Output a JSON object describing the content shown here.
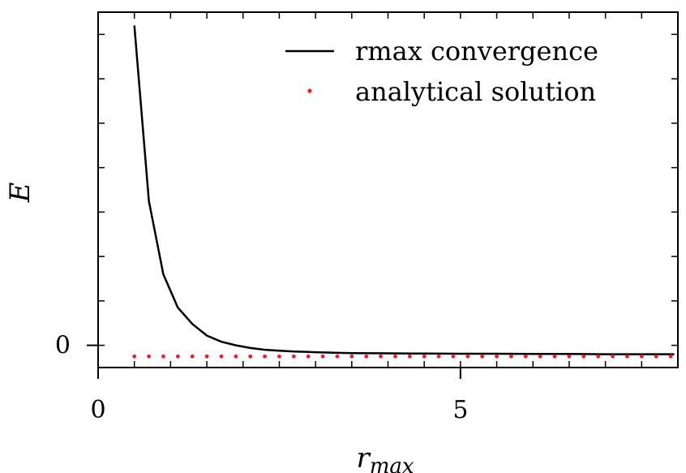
{
  "chart_data": {
    "type": "line",
    "title": "",
    "xlabel": "r",
    "xlabel_subscript": "max",
    "ylabel": "E",
    "xlim": [
      0,
      8
    ],
    "ylim": [
      -0.5,
      7.5
    ],
    "x_ticks": [
      0,
      5
    ],
    "x_tick_labels": [
      "0",
      "5"
    ],
    "y_ticks": [
      0
    ],
    "y_tick_labels": [
      "0"
    ],
    "grid": false,
    "legend_position": "top-right",
    "series": [
      {
        "name": "rmax convergence",
        "style": "line",
        "color": "#000000",
        "x": [
          0.5,
          0.7,
          0.9,
          1.1,
          1.3,
          1.5,
          1.7,
          1.9,
          2.1,
          2.3,
          2.5,
          2.7,
          2.9,
          3.1,
          3.3,
          3.5,
          4.0,
          4.5,
          5.0,
          5.5,
          6.0,
          6.5,
          7.0,
          7.5,
          7.95
        ],
        "y": [
          7.2,
          3.25,
          1.6,
          0.85,
          0.48,
          0.22,
          0.08,
          0.0,
          -0.06,
          -0.1,
          -0.12,
          -0.14,
          -0.15,
          -0.16,
          -0.17,
          -0.175,
          -0.18,
          -0.185,
          -0.19,
          -0.19,
          -0.195,
          -0.195,
          -0.2,
          -0.2,
          -0.2
        ]
      },
      {
        "name": "analytical solution",
        "style": "dots",
        "color": "#e8202a",
        "x": [
          0.5,
          0.7,
          0.9,
          1.1,
          1.3,
          1.5,
          1.7,
          1.9,
          2.1,
          2.3,
          2.5,
          2.7,
          2.9,
          3.1,
          3.3,
          3.5,
          3.7,
          3.9,
          4.1,
          4.3,
          4.5,
          4.7,
          4.9,
          5.1,
          5.3,
          5.5,
          5.7,
          5.9,
          6.1,
          6.3,
          6.5,
          6.7,
          6.9,
          7.1,
          7.3,
          7.5,
          7.7,
          7.9
        ],
        "y_value": -0.25
      }
    ]
  }
}
